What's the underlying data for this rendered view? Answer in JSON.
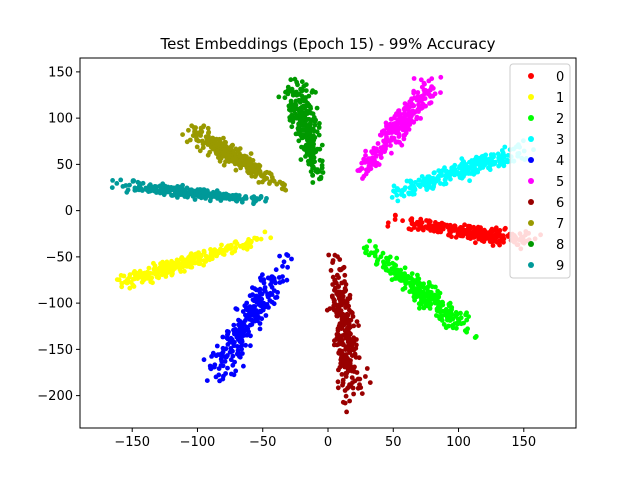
{
  "chart_data": {
    "type": "scatter",
    "title": "Test Embeddings (Epoch 15) - 99% Accuracy",
    "xlabel": "",
    "ylabel": "",
    "xlim": [
      -190,
      190
    ],
    "ylim": [
      -235,
      165
    ],
    "x_ticks": [
      -150,
      -100,
      -50,
      0,
      50,
      100,
      150
    ],
    "y_ticks": [
      150,
      100,
      50,
      0,
      -50,
      -100,
      -150,
      -200
    ],
    "x_tick_labels": [
      "−150",
      "−100",
      "−50",
      "0",
      "50",
      "100",
      "150"
    ],
    "y_tick_labels": [
      "150",
      "100",
      "50",
      "0",
      "−50",
      "−100",
      "−150",
      "−200"
    ],
    "grid": false,
    "legend_position": "top-right",
    "series": [
      {
        "name": "0",
        "color": "#ff0000",
        "from": [
          20,
          -5
        ],
        "to": [
          165,
          -35
        ],
        "spread": 4
      },
      {
        "name": "1",
        "color": "#ffff00",
        "from": [
          -20,
          -15
        ],
        "to": [
          -165,
          -82
        ],
        "spread": 4
      },
      {
        "name": "2",
        "color": "#00ff00",
        "from": [
          10,
          -15
        ],
        "to": [
          115,
          -140
        ],
        "spread": 5
      },
      {
        "name": "3",
        "color": "#00ffff",
        "from": [
          20,
          5
        ],
        "to": [
          160,
          70
        ],
        "spread": 5
      },
      {
        "name": "4",
        "color": "#0000ff",
        "from": [
          -15,
          -15
        ],
        "to": [
          -92,
          -190
        ],
        "spread": 6
      },
      {
        "name": "5",
        "color": "#ff00ff",
        "from": [
          10,
          10
        ],
        "to": [
          85,
          148
        ],
        "spread": 5
      },
      {
        "name": "6",
        "color": "#990000",
        "from": [
          3,
          -5
        ],
        "to": [
          20,
          -218
        ],
        "spread": 5
      },
      {
        "name": "7",
        "color": "#999900",
        "from": [
          -15,
          8
        ],
        "to": [
          -110,
          90
        ],
        "spread": 5
      },
      {
        "name": "8",
        "color": "#009900",
        "from": [
          -5,
          8
        ],
        "to": [
          -25,
          145
        ],
        "spread": 5
      },
      {
        "name": "9",
        "color": "#009999",
        "from": [
          -15,
          5
        ],
        "to": [
          -170,
          30
        ],
        "spread": 3
      }
    ]
  }
}
